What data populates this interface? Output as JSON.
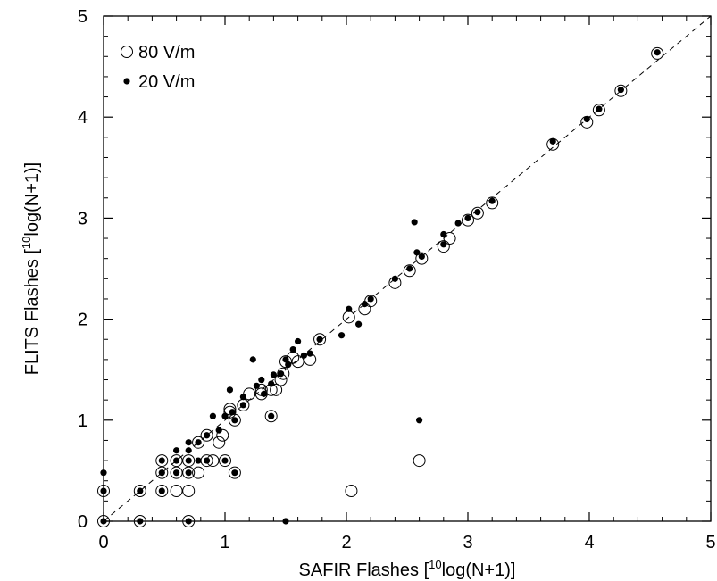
{
  "chart_data": {
    "type": "scatter",
    "title": "",
    "xlabel": {
      "pre": "SAFIR Flashes [",
      "sup": "10",
      "post": "log(N+1)]"
    },
    "ylabel": {
      "pre": "FLITS Flashes [",
      "sup": "10",
      "post": "log(N+1)]"
    },
    "xlim": [
      0,
      5
    ],
    "ylim": [
      0,
      5
    ],
    "xticks": [
      "0",
      "1",
      "2",
      "3",
      "4",
      "5"
    ],
    "yticks": [
      "0",
      "1",
      "2",
      "3",
      "4",
      "5"
    ],
    "legend_position": "top-left",
    "reference_line": "y = x (dashed)",
    "series": [
      {
        "name": "80 V/m",
        "marker": "open-circle",
        "points": [
          [
            0,
            0
          ],
          [
            0,
            0.3
          ],
          [
            0.3,
            0
          ],
          [
            0.3,
            0.3
          ],
          [
            0.48,
            0.3
          ],
          [
            0.48,
            0.48
          ],
          [
            0.48,
            0.6
          ],
          [
            0.6,
            0.3
          ],
          [
            0.6,
            0.48
          ],
          [
            0.6,
            0.6
          ],
          [
            0.7,
            0
          ],
          [
            0.7,
            0.3
          ],
          [
            0.7,
            0.48
          ],
          [
            0.7,
            0.6
          ],
          [
            0.78,
            0.48
          ],
          [
            0.78,
            0.78
          ],
          [
            0.85,
            0.6
          ],
          [
            0.85,
            0.85
          ],
          [
            0.9,
            0.6
          ],
          [
            0.95,
            0.78
          ],
          [
            0.98,
            0.85
          ],
          [
            1.0,
            0.6
          ],
          [
            1.04,
            1.08
          ],
          [
            1.04,
            1.11
          ],
          [
            1.08,
            0.48
          ],
          [
            1.08,
            1.0
          ],
          [
            1.15,
            1.15
          ],
          [
            1.2,
            1.26
          ],
          [
            1.3,
            1.26
          ],
          [
            1.3,
            1.3
          ],
          [
            1.38,
            1.3
          ],
          [
            1.38,
            1.04
          ],
          [
            1.42,
            1.3
          ],
          [
            1.46,
            1.4
          ],
          [
            1.48,
            1.46
          ],
          [
            1.5,
            1.58
          ],
          [
            1.56,
            1.62
          ],
          [
            1.6,
            1.58
          ],
          [
            1.7,
            1.6
          ],
          [
            1.78,
            1.8
          ],
          [
            2.02,
            2.02
          ],
          [
            2.04,
            0.3
          ],
          [
            2.15,
            2.1
          ],
          [
            2.2,
            2.18
          ],
          [
            2.4,
            2.36
          ],
          [
            2.52,
            2.48
          ],
          [
            2.6,
            0.6
          ],
          [
            2.62,
            2.6
          ],
          [
            2.8,
            2.72
          ],
          [
            2.85,
            2.8
          ],
          [
            3.0,
            2.98
          ],
          [
            3.08,
            3.05
          ],
          [
            3.2,
            3.15
          ],
          [
            3.7,
            3.73
          ],
          [
            3.98,
            3.95
          ],
          [
            4.08,
            4.07
          ],
          [
            4.26,
            4.26
          ],
          [
            4.56,
            4.63
          ]
        ]
      },
      {
        "name": "20 V/m",
        "marker": "filled-dot",
        "points": [
          [
            0,
            0
          ],
          [
            0,
            0.3
          ],
          [
            0,
            0.48
          ],
          [
            0.3,
            0
          ],
          [
            0.3,
            0.3
          ],
          [
            0.48,
            0.3
          ],
          [
            0.48,
            0.48
          ],
          [
            0.48,
            0.6
          ],
          [
            0.6,
            0.48
          ],
          [
            0.6,
            0.6
          ],
          [
            0.6,
            0.7
          ],
          [
            0.7,
            0
          ],
          [
            0.7,
            0.48
          ],
          [
            0.7,
            0.6
          ],
          [
            0.7,
            0.7
          ],
          [
            0.7,
            0.78
          ],
          [
            0.78,
            0.78
          ],
          [
            0.78,
            0.6
          ],
          [
            0.85,
            0.85
          ],
          [
            0.85,
            0.6
          ],
          [
            0.9,
            1.04
          ],
          [
            0.95,
            0.9
          ],
          [
            1.0,
            0.6
          ],
          [
            1.0,
            1.04
          ],
          [
            1.04,
            1.3
          ],
          [
            1.06,
            1.08
          ],
          [
            1.08,
            0.48
          ],
          [
            1.08,
            1.0
          ],
          [
            1.15,
            1.15
          ],
          [
            1.15,
            1.23
          ],
          [
            1.23,
            1.6
          ],
          [
            1.26,
            1.34
          ],
          [
            1.3,
            1.4
          ],
          [
            1.32,
            1.26
          ],
          [
            1.38,
            1.36
          ],
          [
            1.38,
            1.04
          ],
          [
            1.4,
            1.45
          ],
          [
            1.46,
            1.46
          ],
          [
            1.5,
            1.6
          ],
          [
            1.5,
            0
          ],
          [
            1.52,
            1.55
          ],
          [
            1.56,
            1.7
          ],
          [
            1.6,
            1.78
          ],
          [
            1.65,
            1.64
          ],
          [
            1.7,
            1.66
          ],
          [
            1.78,
            1.8
          ],
          [
            1.96,
            1.84
          ],
          [
            2.02,
            2.1
          ],
          [
            2.1,
            1.95
          ],
          [
            2.15,
            2.15
          ],
          [
            2.2,
            2.2
          ],
          [
            2.4,
            2.4
          ],
          [
            2.52,
            2.5
          ],
          [
            2.56,
            2.96
          ],
          [
            2.58,
            2.66
          ],
          [
            2.6,
            1.0
          ],
          [
            2.62,
            2.62
          ],
          [
            2.8,
            2.84
          ],
          [
            2.8,
            2.74
          ],
          [
            2.92,
            2.95
          ],
          [
            3.0,
            3.0
          ],
          [
            3.08,
            3.06
          ],
          [
            3.2,
            3.17
          ],
          [
            3.7,
            3.76
          ],
          [
            3.98,
            3.98
          ],
          [
            4.08,
            4.08
          ],
          [
            4.26,
            4.27
          ],
          [
            4.56,
            4.64
          ]
        ]
      }
    ]
  }
}
